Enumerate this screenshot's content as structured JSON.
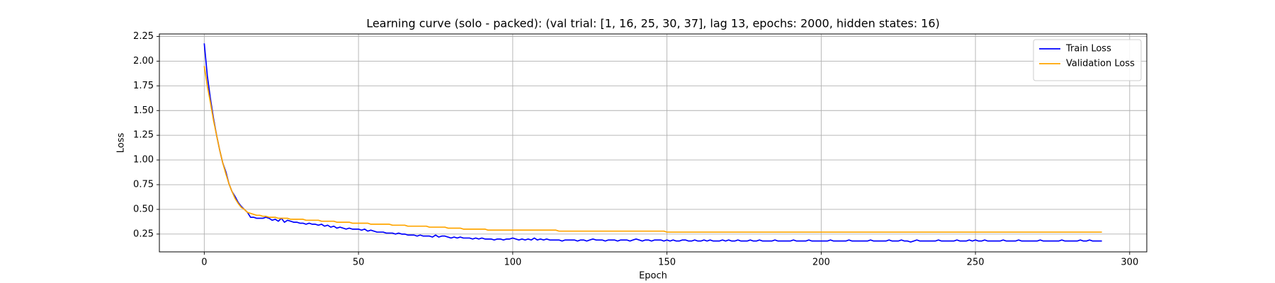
{
  "chart_data": {
    "type": "line",
    "title": "Learning curve (solo - packed): (val trial: [1, 16, 25, 30, 37], lag 13, epochs: 2000, hidden states: 16)",
    "x_label": "Epoch",
    "y_label": "Loss",
    "xlim": [
      -14.55,
      305.55
    ],
    "xticks": [
      0,
      50,
      100,
      150,
      200,
      250,
      300
    ],
    "ylim": [
      0.07,
      2.275
    ],
    "yticks": [
      0.25,
      {
        "value": 0.5,
        "label": "0.50"
      },
      0.75,
      {
        "value": 1.0,
        "label": "1.00"
      },
      1.25,
      {
        "value": 1.5,
        "label": "1.50"
      },
      1.75,
      {
        "value": 2.0,
        "label": "2.00"
      },
      2.25
    ],
    "grid": true,
    "legend": "upper right",
    "x": [
      0,
      1,
      2,
      3,
      4,
      5,
      6,
      7,
      8,
      9,
      10,
      11,
      12,
      13,
      14,
      15,
      16,
      17,
      18,
      19,
      20,
      21,
      22,
      23,
      24,
      25,
      26,
      27,
      28,
      29,
      30,
      31,
      32,
      33,
      34,
      35,
      36,
      37,
      38,
      39,
      40,
      41,
      42,
      43,
      44,
      45,
      46,
      47,
      48,
      49,
      50,
      51,
      52,
      53,
      54,
      55,
      56,
      57,
      58,
      59,
      60,
      61,
      62,
      63,
      64,
      65,
      66,
      67,
      68,
      69,
      70,
      71,
      72,
      73,
      74,
      75,
      76,
      77,
      78,
      79,
      80,
      81,
      82,
      83,
      84,
      85,
      86,
      87,
      88,
      89,
      90,
      91,
      92,
      93,
      94,
      95,
      96,
      97,
      98,
      99,
      100,
      101,
      102,
      103,
      104,
      105,
      106,
      107,
      108,
      109,
      110,
      111,
      112,
      113,
      114,
      115,
      116,
      117,
      118,
      119,
      120,
      121,
      122,
      123,
      124,
      125,
      126,
      127,
      128,
      129,
      130,
      131,
      132,
      133,
      134,
      135,
      136,
      137,
      138,
      139,
      140,
      141,
      142,
      143,
      144,
      145,
      146,
      147,
      148,
      149,
      150,
      151,
      152,
      153,
      154,
      155,
      156,
      157,
      158,
      159,
      160,
      161,
      162,
      163,
      164,
      165,
      166,
      167,
      168,
      169,
      170,
      171,
      172,
      173,
      174,
      175,
      176,
      177,
      178,
      179,
      180,
      181,
      182,
      183,
      184,
      185,
      186,
      187,
      188,
      189,
      190,
      191,
      192,
      193,
      194,
      195,
      196,
      197,
      198,
      199,
      200,
      201,
      202,
      203,
      204,
      205,
      206,
      207,
      208,
      209,
      210,
      211,
      212,
      213,
      214,
      215,
      216,
      217,
      218,
      219,
      220,
      221,
      222,
      223,
      224,
      225,
      226,
      227,
      228,
      229,
      230,
      231,
      232,
      233,
      234,
      235,
      236,
      237,
      238,
      239,
      240,
      241,
      242,
      243,
      244,
      245,
      246,
      247,
      248,
      249,
      250,
      251,
      252,
      253,
      254,
      255,
      256,
      257,
      258,
      259,
      260,
      261,
      262,
      263,
      264,
      265,
      266,
      267,
      268,
      269,
      270,
      271,
      272,
      273,
      274,
      275,
      276,
      277,
      278,
      279,
      280,
      281,
      282,
      283,
      284,
      285,
      286,
      287,
      288,
      289,
      290,
      291
    ],
    "series": [
      {
        "name": "Train Loss",
        "color": "#0000ff",
        "values": [
          2.18,
          1.85,
          1.62,
          1.42,
          1.25,
          1.1,
          0.97,
          0.88,
          0.76,
          0.68,
          0.63,
          0.57,
          0.53,
          0.5,
          0.47,
          0.42,
          0.42,
          0.41,
          0.41,
          0.41,
          0.42,
          0.41,
          0.39,
          0.4,
          0.38,
          0.41,
          0.37,
          0.39,
          0.38,
          0.37,
          0.37,
          0.36,
          0.36,
          0.35,
          0.36,
          0.35,
          0.35,
          0.34,
          0.35,
          0.33,
          0.34,
          0.32,
          0.33,
          0.31,
          0.32,
          0.31,
          0.3,
          0.31,
          0.3,
          0.3,
          0.3,
          0.29,
          0.3,
          0.28,
          0.29,
          0.28,
          0.27,
          0.27,
          0.27,
          0.26,
          0.26,
          0.26,
          0.25,
          0.26,
          0.25,
          0.25,
          0.24,
          0.24,
          0.24,
          0.23,
          0.24,
          0.23,
          0.23,
          0.23,
          0.22,
          0.24,
          0.22,
          0.23,
          0.23,
          0.22,
          0.21,
          0.22,
          0.21,
          0.22,
          0.21,
          0.21,
          0.21,
          0.2,
          0.21,
          0.2,
          0.21,
          0.2,
          0.2,
          0.2,
          0.19,
          0.2,
          0.2,
          0.19,
          0.2,
          0.2,
          0.21,
          0.2,
          0.19,
          0.2,
          0.19,
          0.2,
          0.19,
          0.21,
          0.19,
          0.2,
          0.19,
          0.2,
          0.19,
          0.19,
          0.19,
          0.19,
          0.18,
          0.19,
          0.19,
          0.19,
          0.19,
          0.18,
          0.19,
          0.19,
          0.18,
          0.19,
          0.2,
          0.19,
          0.19,
          0.19,
          0.18,
          0.19,
          0.19,
          0.19,
          0.18,
          0.19,
          0.19,
          0.19,
          0.18,
          0.19,
          0.2,
          0.19,
          0.18,
          0.19,
          0.19,
          0.18,
          0.19,
          0.19,
          0.19,
          0.18,
          0.19,
          0.18,
          0.19,
          0.18,
          0.18,
          0.19,
          0.19,
          0.18,
          0.18,
          0.19,
          0.18,
          0.18,
          0.19,
          0.18,
          0.19,
          0.18,
          0.18,
          0.18,
          0.19,
          0.18,
          0.19,
          0.18,
          0.18,
          0.19,
          0.18,
          0.18,
          0.18,
          0.19,
          0.18,
          0.18,
          0.19,
          0.18,
          0.18,
          0.18,
          0.18,
          0.19,
          0.18,
          0.18,
          0.18,
          0.18,
          0.18,
          0.19,
          0.18,
          0.18,
          0.18,
          0.18,
          0.19,
          0.18,
          0.18,
          0.18,
          0.18,
          0.18,
          0.18,
          0.19,
          0.18,
          0.18,
          0.18,
          0.18,
          0.18,
          0.19,
          0.18,
          0.18,
          0.18,
          0.18,
          0.18,
          0.18,
          0.19,
          0.18,
          0.18,
          0.18,
          0.18,
          0.18,
          0.19,
          0.18,
          0.18,
          0.18,
          0.19,
          0.18,
          0.18,
          0.17,
          0.18,
          0.19,
          0.18,
          0.18,
          0.18,
          0.18,
          0.18,
          0.18,
          0.19,
          0.18,
          0.18,
          0.18,
          0.18,
          0.18,
          0.19,
          0.18,
          0.18,
          0.18,
          0.19,
          0.18,
          0.19,
          0.18,
          0.18,
          0.19,
          0.18,
          0.18,
          0.18,
          0.18,
          0.18,
          0.19,
          0.18,
          0.18,
          0.18,
          0.18,
          0.19,
          0.18,
          0.18,
          0.18,
          0.18,
          0.18,
          0.18,
          0.19,
          0.18,
          0.18,
          0.18,
          0.18,
          0.18,
          0.18,
          0.19,
          0.18,
          0.18,
          0.18,
          0.18,
          0.18,
          0.19,
          0.18,
          0.18,
          0.19,
          0.18,
          0.18,
          0.18,
          0.18
        ]
      },
      {
        "name": "Validation Loss",
        "color": "#ffa500",
        "values": [
          1.95,
          1.75,
          1.58,
          1.4,
          1.25,
          1.1,
          0.97,
          0.86,
          0.76,
          0.68,
          0.61,
          0.56,
          0.52,
          0.5,
          0.47,
          0.46,
          0.45,
          0.44,
          0.44,
          0.43,
          0.43,
          0.42,
          0.42,
          0.42,
          0.41,
          0.41,
          0.41,
          0.41,
          0.4,
          0.4,
          0.4,
          0.4,
          0.4,
          0.39,
          0.39,
          0.39,
          0.39,
          0.39,
          0.38,
          0.38,
          0.38,
          0.38,
          0.38,
          0.37,
          0.37,
          0.37,
          0.37,
          0.37,
          0.36,
          0.36,
          0.36,
          0.36,
          0.36,
          0.36,
          0.35,
          0.35,
          0.35,
          0.35,
          0.35,
          0.35,
          0.35,
          0.34,
          0.34,
          0.34,
          0.34,
          0.34,
          0.33,
          0.33,
          0.33,
          0.33,
          0.33,
          0.33,
          0.33,
          0.32,
          0.32,
          0.32,
          0.32,
          0.32,
          0.32,
          0.31,
          0.31,
          0.31,
          0.31,
          0.31,
          0.3,
          0.3,
          0.3,
          0.3,
          0.3,
          0.3,
          0.3,
          0.3,
          0.29,
          0.29,
          0.29,
          0.29,
          0.29,
          0.29,
          0.29,
          0.29,
          0.29,
          0.29,
          0.29,
          0.29,
          0.29,
          0.29,
          0.29,
          0.29,
          0.29,
          0.29,
          0.29,
          0.29,
          0.29,
          0.29,
          0.29,
          0.28,
          0.28,
          0.28,
          0.28,
          0.28,
          0.28,
          0.28,
          0.28,
          0.28,
          0.28,
          0.28,
          0.28,
          0.28,
          0.28,
          0.28,
          0.28,
          0.28,
          0.28,
          0.28,
          0.28,
          0.28,
          0.28,
          0.28,
          0.28,
          0.28,
          0.28,
          0.28,
          0.28,
          0.28,
          0.28,
          0.28,
          0.28,
          0.28,
          0.28,
          0.28,
          0.27,
          0.27,
          0.27,
          0.27,
          0.27,
          0.27,
          0.27,
          0.27,
          0.27,
          0.27,
          0.27,
          0.27,
          0.27,
          0.27,
          0.27,
          0.27,
          0.27,
          0.27,
          0.27,
          0.27,
          0.27,
          0.27,
          0.27,
          0.27,
          0.27,
          0.27,
          0.27,
          0.27,
          0.27,
          0.27,
          0.27,
          0.27,
          0.27,
          0.27,
          0.27,
          0.27,
          0.27,
          0.27,
          0.27,
          0.27,
          0.27,
          0.27,
          0.27,
          0.27,
          0.27,
          0.27,
          0.27,
          0.27,
          0.27,
          0.27,
          0.27,
          0.27,
          0.27,
          0.27,
          0.27,
          0.27,
          0.27,
          0.27,
          0.27,
          0.27,
          0.27,
          0.27,
          0.27,
          0.27,
          0.27,
          0.27,
          0.27,
          0.27,
          0.27,
          0.27,
          0.27,
          0.27,
          0.27,
          0.27,
          0.27,
          0.27,
          0.27,
          0.27,
          0.27,
          0.27,
          0.27,
          0.27,
          0.27,
          0.27,
          0.27,
          0.27,
          0.27,
          0.27,
          0.27,
          0.27,
          0.27,
          0.27,
          0.27,
          0.27,
          0.27,
          0.27,
          0.27,
          0.27,
          0.27,
          0.27,
          0.27,
          0.27,
          0.27,
          0.27,
          0.27,
          0.27,
          0.27,
          0.27,
          0.27,
          0.27,
          0.27,
          0.27,
          0.27,
          0.27,
          0.27,
          0.27,
          0.27,
          0.27,
          0.27,
          0.27,
          0.27,
          0.27,
          0.27,
          0.27,
          0.27,
          0.27,
          0.27,
          0.27,
          0.27,
          0.27,
          0.27,
          0.27,
          0.27,
          0.27,
          0.27,
          0.27,
          0.27,
          0.27,
          0.27,
          0.27,
          0.27,
          0.27
        ]
      }
    ]
  }
}
